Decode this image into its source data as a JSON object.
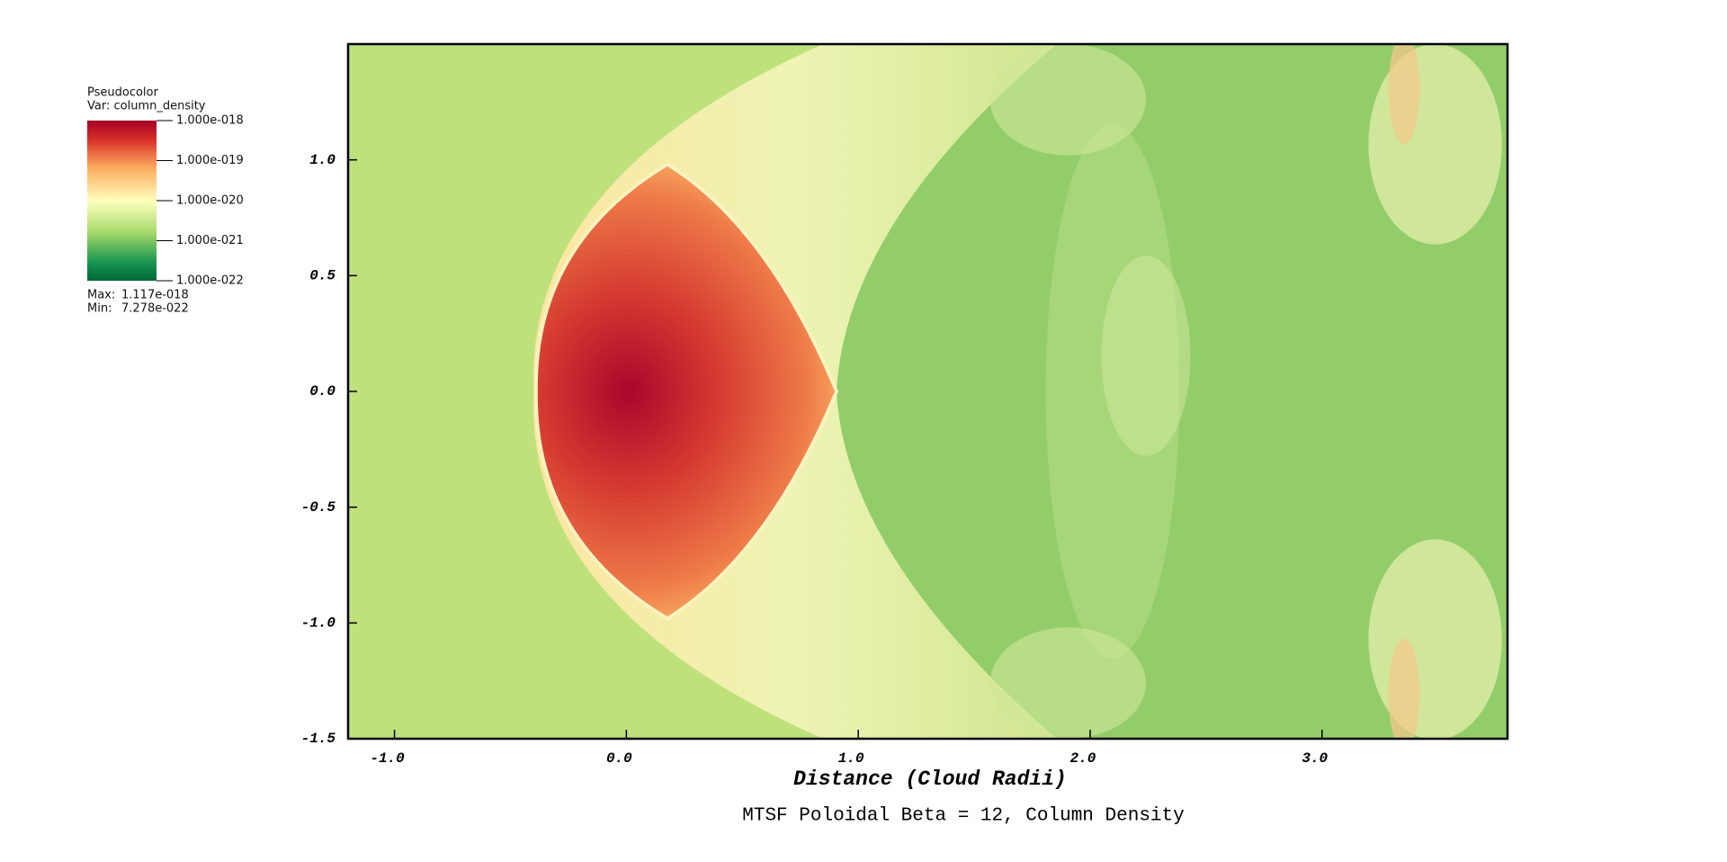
{
  "chart_data": {
    "type": "pseudocolor",
    "title": "MTSF Poloidal Beta = 12, Column Density",
    "xlabel": "Distance (Cloud Radii)",
    "xlim": [
      -1.2,
      3.8
    ],
    "ylim": [
      -1.5,
      1.5
    ],
    "xticks": [
      {
        "value": -1,
        "label": "-1.0"
      },
      {
        "value": 0,
        "label": "0.0"
      },
      {
        "value": 1,
        "label": "1.0"
      },
      {
        "value": 2,
        "label": "2.0"
      },
      {
        "value": 3,
        "label": "3.0"
      }
    ],
    "yticks": [
      {
        "value": -1.5,
        "label": "-1.5"
      },
      {
        "value": -1,
        "label": "-1.0"
      },
      {
        "value": -0.5,
        "label": "-0.5"
      },
      {
        "value": 0,
        "label": "0.0"
      },
      {
        "value": 0.5,
        "label": "0.5"
      },
      {
        "value": 1,
        "label": "1.0"
      }
    ],
    "legend": {
      "plot_name": "Pseudocolor",
      "variable": "Var: column_density",
      "log": true,
      "lim": [
        1e-22,
        1e-18
      ],
      "ticks": [
        {
          "value": 1e-18,
          "label": "1.000e-018"
        },
        {
          "value": 1e-19,
          "label": "1.000e-019"
        },
        {
          "value": 1e-20,
          "label": "1.000e-020"
        },
        {
          "value": 1e-21,
          "label": "1.000e-021"
        },
        {
          "value": 1e-22,
          "label": "1.000e-022"
        }
      ],
      "max_label": "Max:",
      "max": {
        "value": 1.117e-18,
        "label": "1.117e-018"
      },
      "min_label": "Min:",
      "min": {
        "value": 7.278e-22,
        "label": "7.278e-022"
      }
    }
  }
}
